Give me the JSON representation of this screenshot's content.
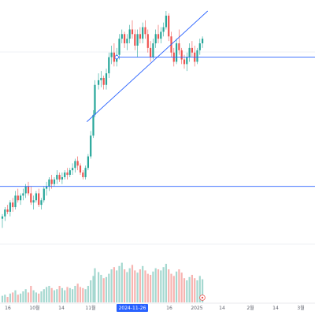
{
  "colors": {
    "up": "#26a69a",
    "down": "#ef5350",
    "up_volume": "#a5d8d0",
    "down_volume": "#f7b4b1",
    "drawing": "#2962ff",
    "grid": "#e0e3eb",
    "badge": "#2962ff"
  },
  "axis": {
    "tick_labels": [
      "16",
      "10월",
      "14",
      "11월",
      "16",
      "2025",
      "14",
      "2월",
      "14",
      "3월"
    ],
    "crosshair_date": "2024-11-26"
  },
  "toolbar": {
    "reset_icon": "target-icon"
  },
  "chart_data": {
    "type": "candlestick",
    "title": "",
    "price_range": [
      0,
      100
    ],
    "x_positions": [
      0,
      1,
      2,
      3,
      4,
      5,
      6,
      7,
      8,
      9,
      10,
      11,
      12,
      13,
      14,
      15,
      16,
      17,
      18,
      19,
      20,
      21,
      22,
      23,
      24,
      25,
      26,
      27,
      28,
      29,
      30,
      31,
      32,
      33,
      34,
      35,
      35.6,
      37,
      38,
      39,
      40,
      41,
      42,
      43,
      44,
      45,
      46,
      47,
      48,
      49,
      50,
      51,
      52,
      53,
      54,
      55,
      56,
      57,
      58,
      59,
      60,
      61,
      62,
      63,
      64,
      65,
      66,
      67,
      68,
      69,
      70,
      71,
      72,
      73,
      74,
      75,
      76,
      77
    ],
    "candles": [
      [
        10,
        12,
        6,
        11
      ],
      [
        11,
        15,
        9,
        14
      ],
      [
        14,
        16,
        12,
        13
      ],
      [
        13,
        18,
        11,
        17
      ],
      [
        17,
        19,
        13,
        15
      ],
      [
        15,
        22,
        14,
        20
      ],
      [
        20,
        23,
        17,
        18
      ],
      [
        18,
        21,
        16,
        20
      ],
      [
        20,
        23,
        18,
        21
      ],
      [
        21,
        25,
        19,
        24
      ],
      [
        24,
        26,
        20,
        21
      ],
      [
        21,
        24,
        16,
        17
      ],
      [
        17,
        20,
        14,
        18
      ],
      [
        18,
        22,
        17,
        21
      ],
      [
        21,
        23,
        15,
        16
      ],
      [
        16,
        19,
        14,
        18
      ],
      [
        18,
        24,
        17,
        23
      ],
      [
        23,
        26,
        20,
        24
      ],
      [
        24,
        28,
        22,
        27
      ],
      [
        27,
        29,
        23,
        25
      ],
      [
        25,
        28,
        24,
        27
      ],
      [
        27,
        31,
        25,
        29
      ],
      [
        29,
        30,
        26,
        27
      ],
      [
        27,
        30,
        25,
        28
      ],
      [
        28,
        31,
        27,
        30
      ],
      [
        30,
        32,
        27,
        29
      ],
      [
        29,
        32,
        28,
        31
      ],
      [
        31,
        34,
        29,
        32
      ],
      [
        32,
        36,
        30,
        35
      ],
      [
        35,
        37,
        31,
        33
      ],
      [
        33,
        34,
        29,
        30
      ],
      [
        30,
        31,
        27,
        28
      ],
      [
        28,
        33,
        27,
        32
      ],
      [
        32,
        38,
        31,
        37
      ],
      [
        37,
        48,
        36,
        46
      ],
      [
        46,
        57,
        45,
        55
      ],
      [
        55,
        70,
        54,
        68
      ],
      [
        68,
        73,
        66,
        70
      ],
      [
        70,
        74,
        67,
        71
      ],
      [
        71,
        72,
        66,
        68
      ],
      [
        68,
        75,
        66,
        73
      ],
      [
        73,
        82,
        71,
        80
      ],
      [
        80,
        85,
        77,
        82
      ],
      [
        82,
        86,
        76,
        78
      ],
      [
        78,
        84,
        76,
        81
      ],
      [
        81,
        90,
        79,
        88
      ],
      [
        88,
        92,
        86,
        90
      ],
      [
        90,
        91,
        84,
        86
      ],
      [
        86,
        90,
        83,
        88
      ],
      [
        88,
        94,
        86,
        92
      ],
      [
        92,
        96,
        88,
        90
      ],
      [
        90,
        92,
        83,
        85
      ],
      [
        85,
        92,
        80,
        90
      ],
      [
        90,
        93,
        86,
        88
      ],
      [
        88,
        95,
        86,
        93
      ],
      [
        93,
        96,
        88,
        90
      ],
      [
        90,
        92,
        82,
        84
      ],
      [
        84,
        87,
        78,
        80
      ],
      [
        80,
        88,
        79,
        86
      ],
      [
        86,
        92,
        84,
        90
      ],
      [
        90,
        94,
        86,
        88
      ],
      [
        88,
        93,
        86,
        91
      ],
      [
        91,
        95,
        89,
        93
      ],
      [
        93,
        100,
        92,
        98
      ],
      [
        98,
        99,
        87,
        89
      ],
      [
        89,
        91,
        80,
        82
      ],
      [
        82,
        84,
        76,
        78
      ],
      [
        78,
        88,
        77,
        86
      ],
      [
        86,
        92,
        81,
        83
      ],
      [
        83,
        84,
        77,
        79
      ],
      [
        79,
        81,
        75,
        77
      ],
      [
        77,
        82,
        74,
        80
      ],
      [
        80,
        86,
        78,
        84
      ],
      [
        84,
        87,
        80,
        82
      ],
      [
        82,
        85,
        76,
        78
      ],
      [
        78,
        84,
        77,
        83
      ],
      [
        83,
        88,
        81,
        86
      ],
      [
        86,
        89,
        84,
        88
      ]
    ],
    "volume_range": [
      0,
      100
    ],
    "volumes": [
      12,
      14,
      10,
      16,
      18,
      22,
      14,
      16,
      20,
      24,
      18,
      30,
      22,
      18,
      16,
      20,
      24,
      28,
      30,
      26,
      22,
      24,
      30,
      26,
      22,
      28,
      26,
      24,
      30,
      34,
      28,
      26,
      24,
      30,
      40,
      48,
      62,
      55,
      50,
      44,
      46,
      52,
      60,
      64,
      58,
      66,
      72,
      60,
      55,
      62,
      68,
      58,
      54,
      60,
      66,
      58,
      52,
      50,
      56,
      62,
      60,
      58,
      64,
      70,
      60,
      52,
      48,
      56,
      60,
      54,
      44,
      40,
      46,
      50,
      44,
      40,
      48,
      42
    ],
    "trendline": {
      "from": [
        32.5,
        52
      ],
      "to": [
        79,
        100
      ]
    },
    "horizontal_lines": [
      {
        "price": 24,
        "from_x": -2
      },
      {
        "price": 80,
        "from_x": 44
      }
    ]
  }
}
